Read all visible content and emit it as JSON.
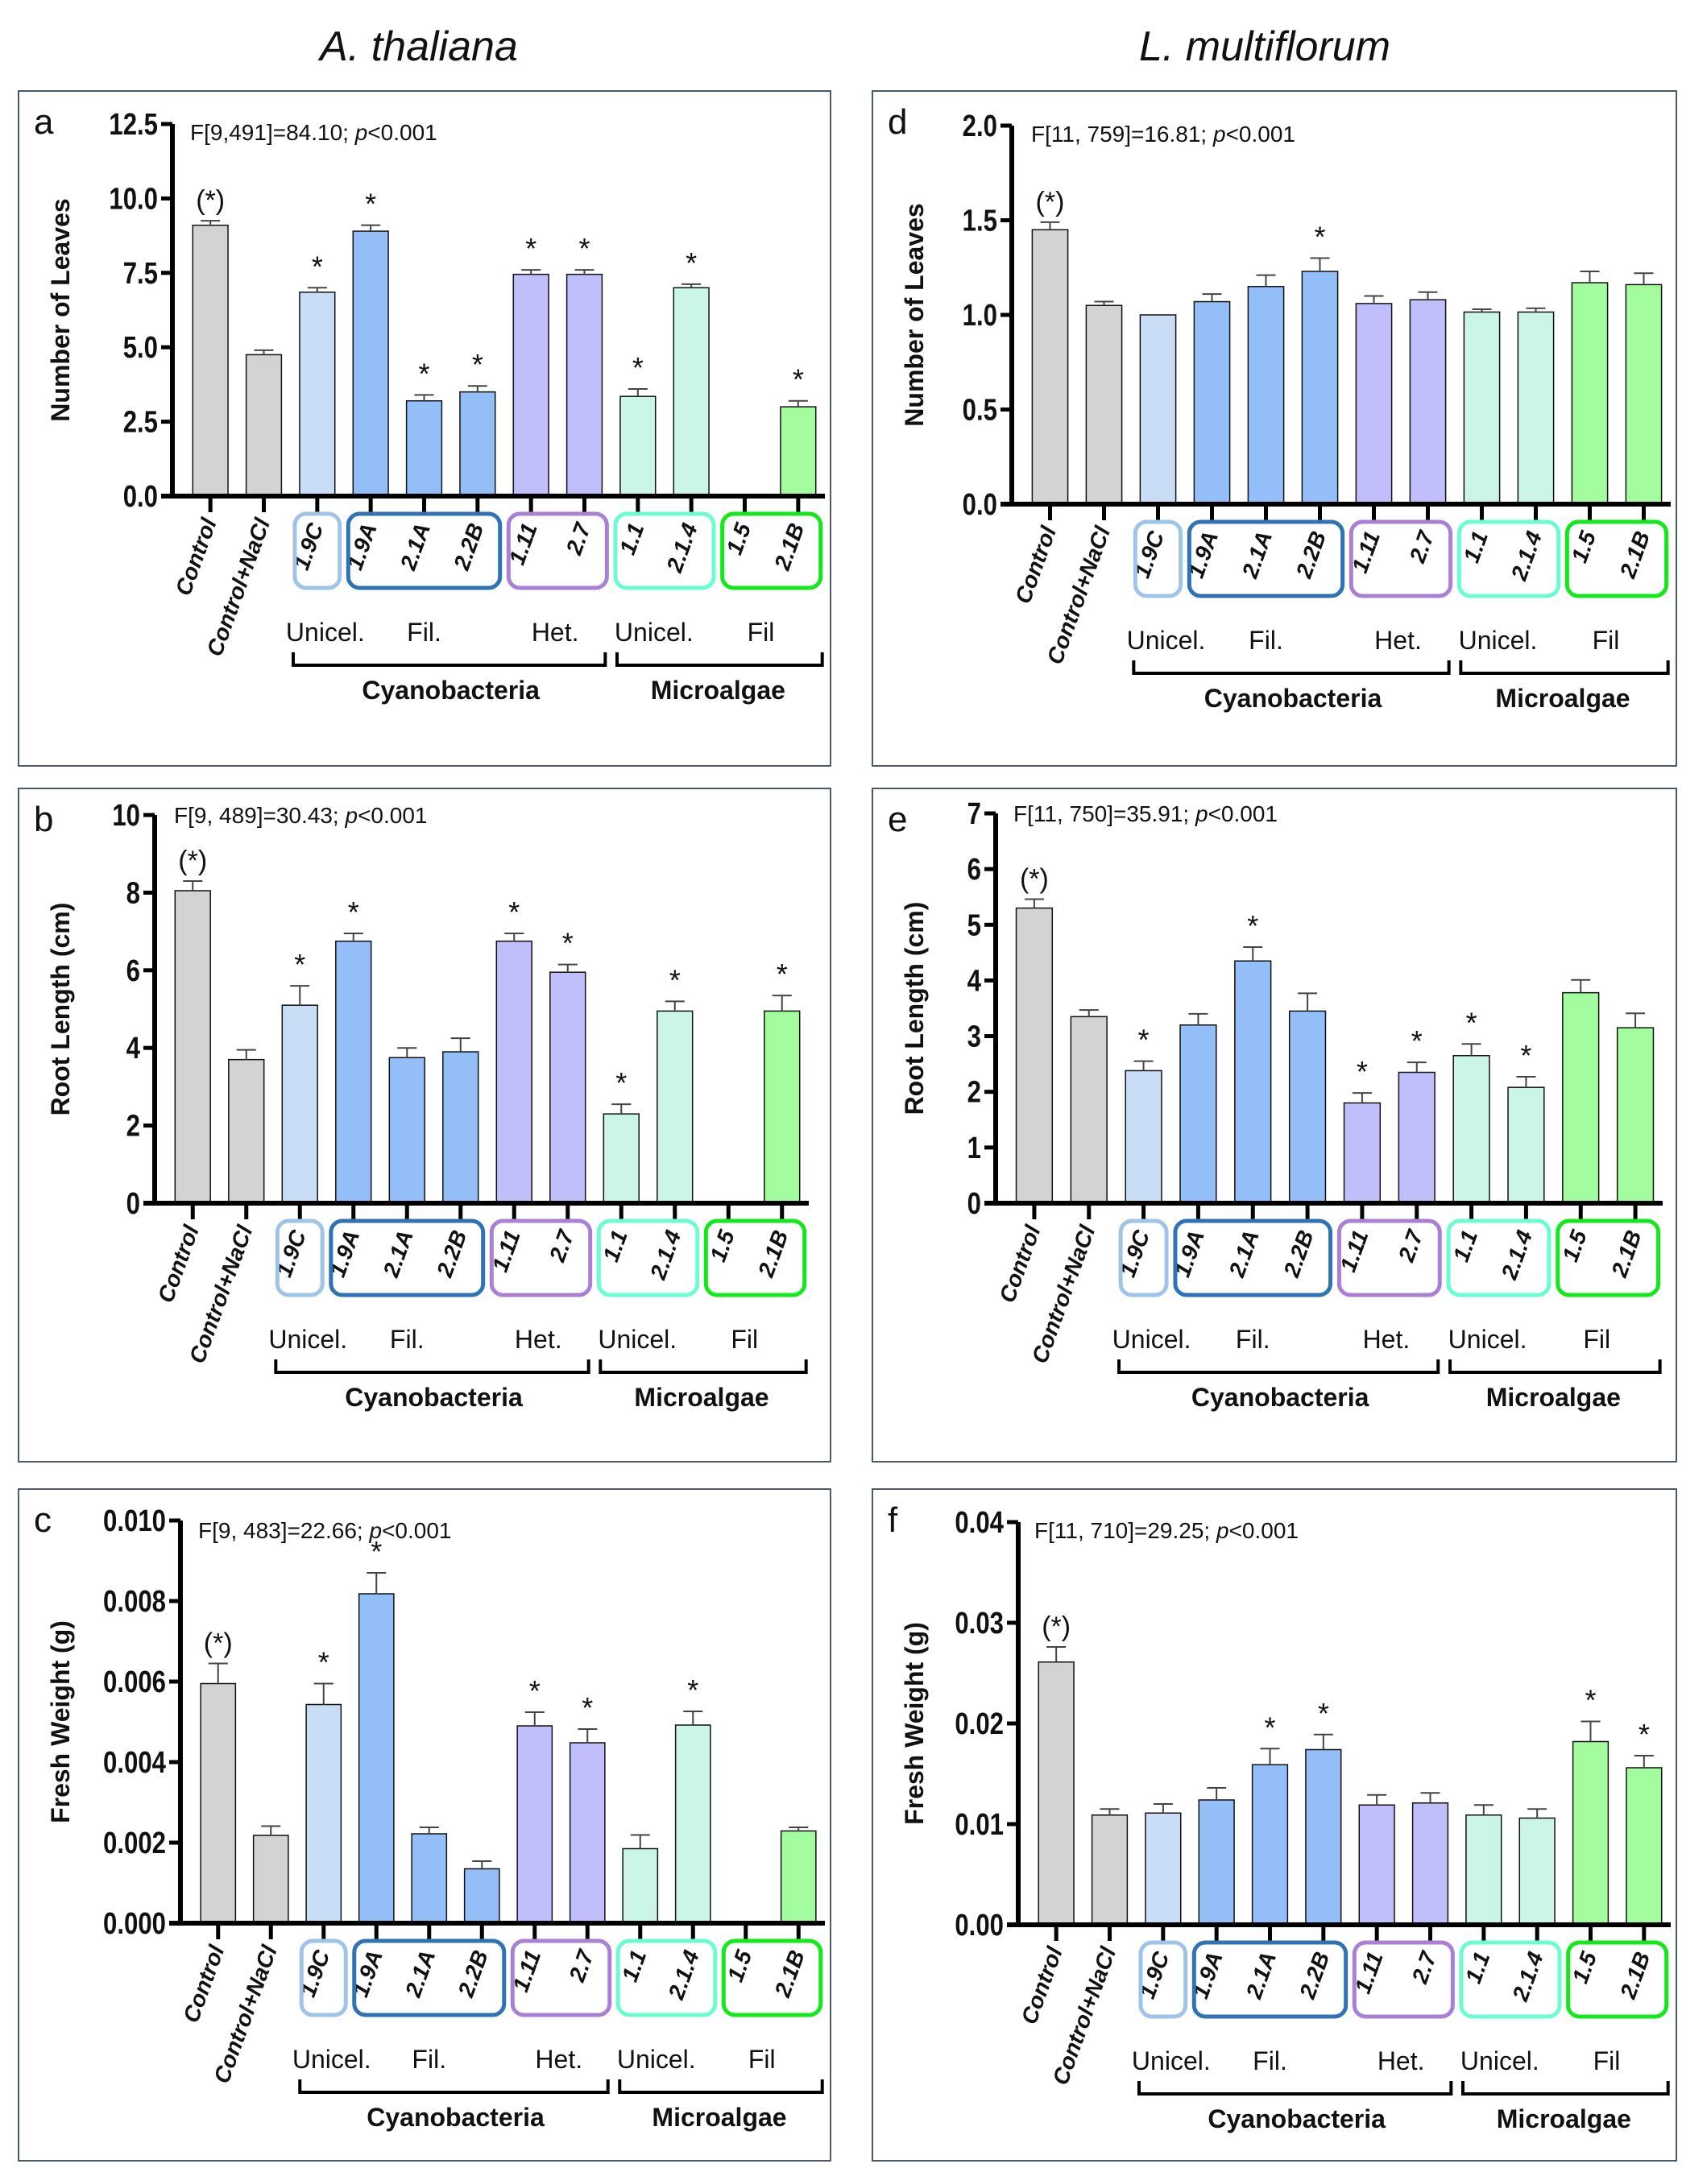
{
  "column_titles": [
    "A. thaliana",
    "L. multiflorum"
  ],
  "colors": {
    "control": "#d3d3d3",
    "unicel_cyano": "#c9ddf7",
    "fil_cyano": "#93bef7",
    "het_cyano": "#c0bffb",
    "unicel_algae": "#cbf5e5",
    "fil_algae": "#a3fd9f",
    "box_1_9C": "#9fc4e8",
    "box_fil": "#2f73b5",
    "box_het": "#aa7fd6",
    "box_unicel_algae": "#6bfdd0",
    "box_fil_algae": "#12e81a"
  },
  "group_labels": {
    "sub": [
      "Unicel.",
      "Fil.",
      "Het.",
      "Unicel.",
      "Fil"
    ],
    "main": [
      "Cyanobacteria",
      "Microalgae"
    ]
  },
  "chart_data": [
    {
      "panel": "a",
      "type": "bar",
      "species": "A. thaliana",
      "ylabel": "Number of Leaves",
      "stat": "F[9,491]=84.10; ",
      "stat_p": "p",
      "stat_tail": "<0.001",
      "ylim": [
        0,
        12.5
      ],
      "yticks": [
        "0.0",
        "2.5",
        "5.0",
        "7.5",
        "10.0",
        "12.5"
      ],
      "ytick_values": [
        0,
        2.5,
        5,
        7.5,
        10,
        12.5
      ],
      "categories": [
        "Control",
        "Control+NaCl",
        "1.9C",
        "1.9A",
        "2.1A",
        "2.2B",
        "1.11",
        "2.7",
        "1.1",
        "2.1.4",
        "1.5",
        "2.1B"
      ],
      "values": [
        9.1,
        4.75,
        6.85,
        8.9,
        3.2,
        3.5,
        7.45,
        7.45,
        3.35,
        7.0,
        null,
        3.0
      ],
      "errors": [
        0.15,
        0.15,
        0.15,
        0.2,
        0.2,
        0.2,
        0.15,
        0.15,
        0.25,
        0.12,
        null,
        0.2
      ],
      "significance": [
        "(*)",
        "",
        "*",
        "*",
        "*",
        "*",
        "*",
        "*",
        "*",
        "*",
        "",
        "*"
      ]
    },
    {
      "panel": "b",
      "type": "bar",
      "species": "A. thaliana",
      "ylabel": "Root Length (cm)",
      "stat": "F[9, 489]=30.43; ",
      "stat_p": "p",
      "stat_tail": "<0.001",
      "ylim": [
        0,
        10
      ],
      "yticks": [
        "0",
        "2",
        "4",
        "6",
        "8",
        "10"
      ],
      "ytick_values": [
        0,
        2,
        4,
        6,
        8,
        10
      ],
      "categories": [
        "Control",
        "Control+NaCl",
        "1.9C",
        "1.9A",
        "2.1A",
        "2.2B",
        "1.11",
        "2.7",
        "1.1",
        "2.1.4",
        "1.5",
        "2.1B"
      ],
      "values": [
        8.05,
        3.7,
        5.1,
        6.75,
        3.75,
        3.9,
        6.75,
        5.95,
        2.3,
        4.95,
        null,
        4.95
      ],
      "errors": [
        0.25,
        0.25,
        0.5,
        0.2,
        0.25,
        0.35,
        0.2,
        0.2,
        0.25,
        0.25,
        null,
        0.4
      ],
      "significance": [
        "(*)",
        "",
        "*",
        "*",
        "",
        "",
        "*",
        "*",
        "*",
        "*",
        "",
        "*"
      ]
    },
    {
      "panel": "c",
      "type": "bar",
      "species": "A. thaliana",
      "ylabel": "Fresh Weight (g)",
      "stat": "F[9, 483]=22.66; ",
      "stat_p": "p",
      "stat_tail": "<0.001",
      "ylim": [
        0,
        0.01
      ],
      "yticks": [
        "0.000",
        "0.002",
        "0.004",
        "0.006",
        "0.008",
        "0.010"
      ],
      "ytick_values": [
        0,
        0.002,
        0.004,
        0.006,
        0.008,
        0.01
      ],
      "categories": [
        "Control",
        "Control+NaCl",
        "1.9C",
        "1.9A",
        "2.1A",
        "2.2B",
        "1.11",
        "2.7",
        "1.1",
        "2.1.4",
        "1.5",
        "2.1B"
      ],
      "values": [
        0.00595,
        0.00218,
        0.00543,
        0.00818,
        0.00222,
        0.00135,
        0.0049,
        0.00448,
        0.00185,
        0.00492,
        null,
        0.00229
      ],
      "errors": [
        0.0005,
        0.00023,
        0.00052,
        0.00052,
        0.00016,
        0.00019,
        0.00034,
        0.00034,
        0.00034,
        0.00034,
        null,
        9e-05
      ],
      "significance": [
        "(*)",
        "",
        "*",
        "*",
        "",
        "",
        "*",
        "*",
        "",
        "*",
        "",
        ""
      ]
    },
    {
      "panel": "d",
      "type": "bar",
      "species": "L. multiflorum",
      "ylabel": "Number of Leaves",
      "stat": "F[11, 759]=16.81; ",
      "stat_p": "p",
      "stat_tail": "<0.001",
      "ylim": [
        0,
        2.0
      ],
      "yticks": [
        "0.0",
        "0.5",
        "1.0",
        "1.5",
        "2.0"
      ],
      "ytick_values": [
        0,
        0.5,
        1.0,
        1.5,
        2.0
      ],
      "categories": [
        "Control",
        "Control+NaCl",
        "1.9C",
        "1.9A",
        "2.1A",
        "2.2B",
        "1.11",
        "2.7",
        "1.1",
        "2.1.4",
        "1.5",
        "2.1B"
      ],
      "values": [
        1.45,
        1.05,
        1.0,
        1.07,
        1.15,
        1.23,
        1.06,
        1.08,
        1.015,
        1.015,
        1.17,
        1.16
      ],
      "errors": [
        0.04,
        0.02,
        0.0,
        0.04,
        0.06,
        0.07,
        0.04,
        0.04,
        0.015,
        0.02,
        0.06,
        0.06
      ],
      "significance": [
        "(*)",
        "",
        "",
        "",
        "",
        "*",
        "",
        "",
        "",
        "",
        "",
        ""
      ]
    },
    {
      "panel": "e",
      "type": "bar",
      "species": "L. multiflorum",
      "ylabel": "Root Length (cm)",
      "stat": "F[11, 750]=35.91; ",
      "stat_p": "p",
      "stat_tail": "<0.001",
      "ylim": [
        0,
        7
      ],
      "yticks": [
        "0",
        "1",
        "2",
        "3",
        "4",
        "5",
        "6",
        "7"
      ],
      "ytick_values": [
        0,
        1,
        2,
        3,
        4,
        5,
        6,
        7
      ],
      "categories": [
        "Control",
        "Control+NaCl",
        "1.9C",
        "1.9A",
        "2.1A",
        "2.2B",
        "1.11",
        "2.7",
        "1.1",
        "2.1.4",
        "1.5",
        "2.1B"
      ],
      "values": [
        5.3,
        3.35,
        2.38,
        3.2,
        4.35,
        3.45,
        1.8,
        2.35,
        2.65,
        2.08,
        3.78,
        3.15
      ],
      "errors": [
        0.16,
        0.12,
        0.17,
        0.2,
        0.25,
        0.32,
        0.18,
        0.18,
        0.21,
        0.19,
        0.23,
        0.26
      ],
      "significance": [
        "(*)",
        "",
        "*",
        "",
        "*",
        "",
        "*",
        "*",
        "*",
        "*",
        "",
        ""
      ]
    },
    {
      "panel": "f",
      "type": "bar",
      "species": "L. multiflorum",
      "ylabel": "Fresh Weight (g)",
      "stat": "F[11, 710]=29.25; ",
      "stat_p": "p",
      "stat_tail": "<0.001",
      "ylim": [
        0,
        0.04
      ],
      "yticks": [
        "0.00",
        "0.01",
        "0.02",
        "0.03",
        "0.04"
      ],
      "ytick_values": [
        0,
        0.01,
        0.02,
        0.03,
        0.04
      ],
      "categories": [
        "Control",
        "Control+NaCl",
        "1.9C",
        "1.9A",
        "2.1A",
        "2.2B",
        "1.11",
        "2.7",
        "1.1",
        "2.1.4",
        "1.5",
        "2.1B"
      ],
      "values": [
        0.0261,
        0.0109,
        0.0111,
        0.0124,
        0.0159,
        0.0174,
        0.0119,
        0.0121,
        0.0109,
        0.0106,
        0.0182,
        0.0156
      ],
      "errors": [
        0.0015,
        0.0006,
        0.0009,
        0.0012,
        0.0016,
        0.0015,
        0.001,
        0.001,
        0.001,
        0.0009,
        0.002,
        0.0012
      ],
      "significance": [
        "(*)",
        "",
        "",
        "",
        "*",
        "*",
        "",
        "",
        "",
        "",
        "*",
        "*"
      ]
    }
  ]
}
